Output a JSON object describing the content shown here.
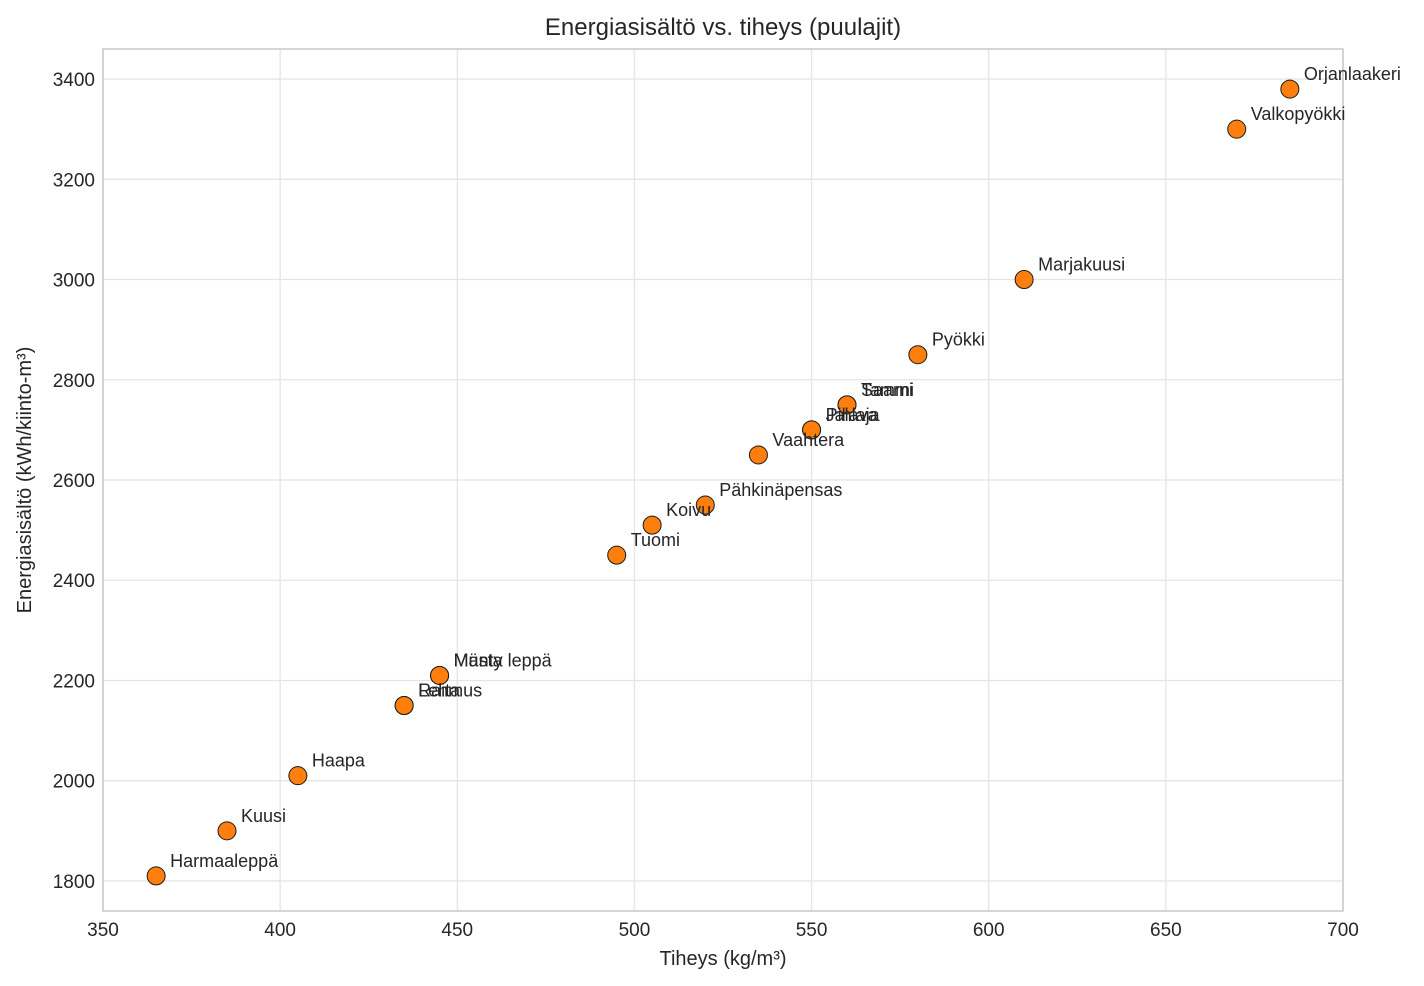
{
  "chart_data": {
    "type": "scatter",
    "title": "Energiasisältö vs. tiheys (puulajit)",
    "xlabel": "Tiheys (kg/m³)",
    "ylabel": "Energiasisältö (kWh/kiinto-m³)",
    "xlim": [
      350,
      700
    ],
    "ylim": [
      1740,
      3460
    ],
    "xticks": [
      350,
      400,
      450,
      500,
      550,
      600,
      650,
      700
    ],
    "yticks": [
      1800,
      2000,
      2200,
      2400,
      2600,
      2800,
      3000,
      3200,
      3400
    ],
    "grid": true,
    "marker_color": "#ff7f0e",
    "points": [
      {
        "label": "Harmaaleppä",
        "x": 365,
        "y": 1810
      },
      {
        "label": "Kuusi",
        "x": 385,
        "y": 1900
      },
      {
        "label": "Haapa",
        "x": 405,
        "y": 2010
      },
      {
        "label": "Raita",
        "x": 435,
        "y": 2150
      },
      {
        "label": "Lehmus",
        "x": 435,
        "y": 2150
      },
      {
        "label": "Mänty",
        "x": 445,
        "y": 2210
      },
      {
        "label": "Musta leppä",
        "x": 445,
        "y": 2210
      },
      {
        "label": "Tuomi",
        "x": 495,
        "y": 2450
      },
      {
        "label": "Koivu",
        "x": 505,
        "y": 2510
      },
      {
        "label": "Pähkinäpensas",
        "x": 520,
        "y": 2550
      },
      {
        "label": "Vaahtera",
        "x": 535,
        "y": 2650
      },
      {
        "label": "Jalava",
        "x": 550,
        "y": 2700
      },
      {
        "label": "Pihlaja",
        "x": 550,
        "y": 2700
      },
      {
        "label": "Saarni",
        "x": 560,
        "y": 2750
      },
      {
        "label": "Tammi",
        "x": 560,
        "y": 2750
      },
      {
        "label": "Pyökki",
        "x": 580,
        "y": 2850
      },
      {
        "label": "Marjakuusi",
        "x": 610,
        "y": 3000
      },
      {
        "label": "Valkopyökki",
        "x": 670,
        "y": 3300
      },
      {
        "label": "Orjanlaakeri",
        "x": 685,
        "y": 3380
      }
    ]
  }
}
